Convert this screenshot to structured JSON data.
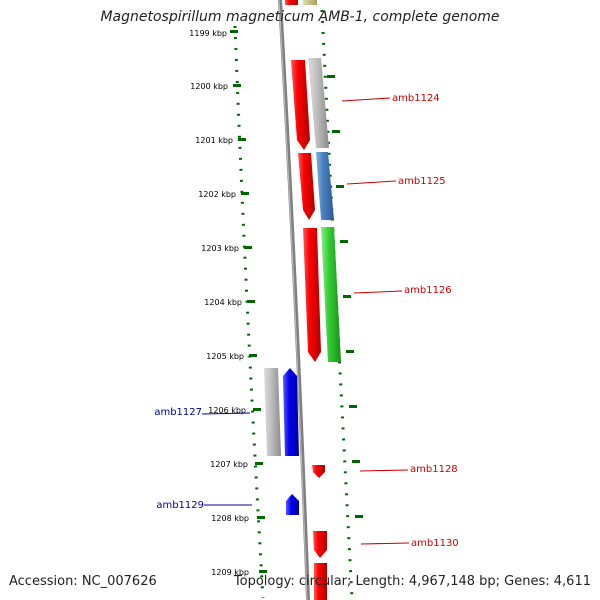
{
  "title": "Magnetospirillum magneticum AMB-1, complete genome",
  "footer": {
    "accession": "Accession: NC_007626",
    "topology": "Topology: circular; Length: 4,967,148 bp; Genes: 4,611"
  },
  "colors": {
    "red": "#ff0000",
    "gray": "#b8b8b8",
    "steelblue": "#4a80c0",
    "green": "#33cc33",
    "blue": "#0000ee",
    "olive": "#c8c080",
    "tick": "#006600",
    "label_right": "#cc0000",
    "label_left": "#000099"
  },
  "ruler": [
    {
      "label": "1199 kbp"
    },
    {
      "label": "1200 kbp"
    },
    {
      "label": "1201 kbp"
    },
    {
      "label": "1202 kbp"
    },
    {
      "label": "1203 kbp"
    },
    {
      "label": "1204 kbp"
    },
    {
      "label": "1205 kbp"
    },
    {
      "label": "1206 kbp"
    },
    {
      "label": "1207 kbp"
    },
    {
      "label": "1208 kbp"
    },
    {
      "label": "1209 kbp"
    }
  ],
  "genes": [
    {
      "name": "amb1124"
    },
    {
      "name": "amb1125"
    },
    {
      "name": "amb1126"
    },
    {
      "name": "amb1127"
    },
    {
      "name": "amb1128"
    },
    {
      "name": "amb1129"
    },
    {
      "name": "amb1130"
    }
  ]
}
